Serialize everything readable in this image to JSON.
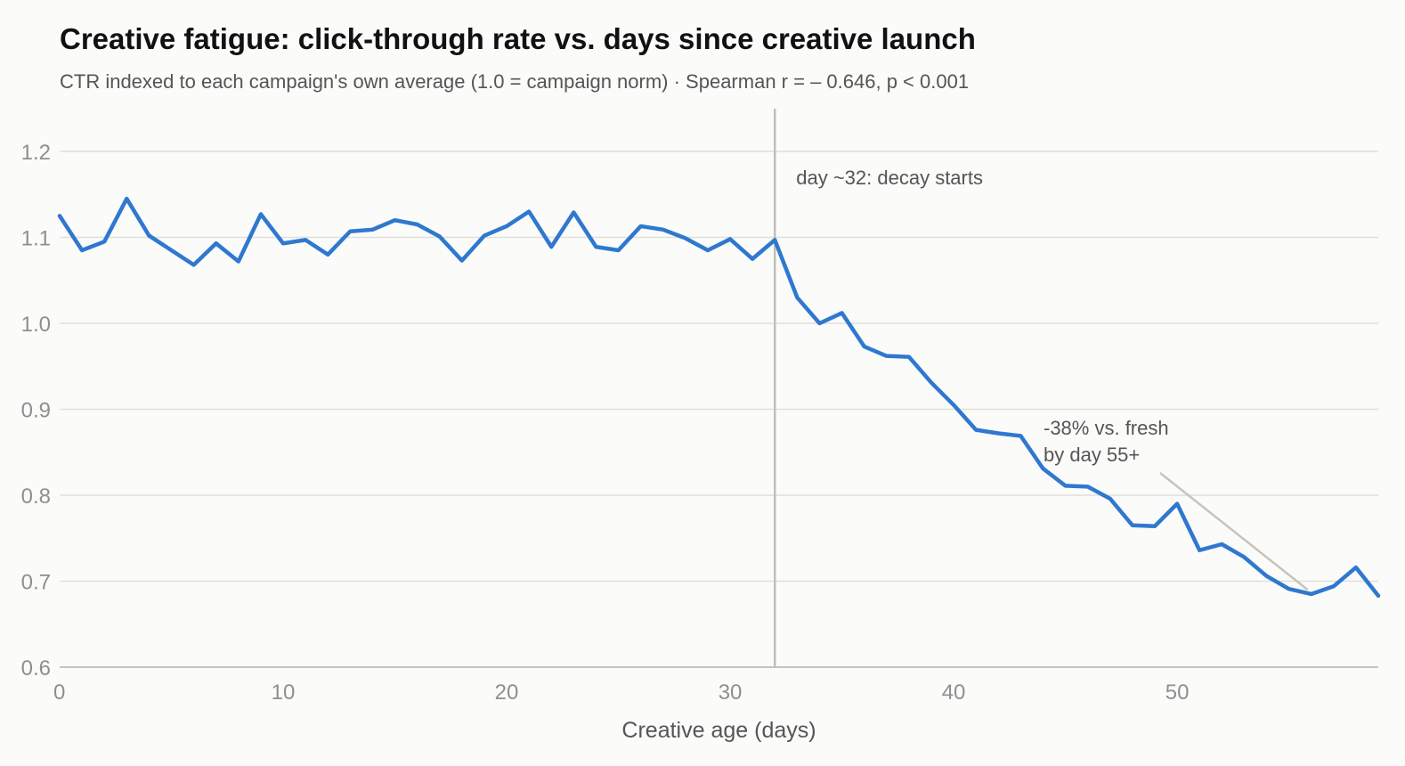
{
  "chart_data": {
    "type": "line",
    "title": "Creative fatigue: click-through rate vs. days since creative launch",
    "subtitle": "CTR indexed to each campaign's own average (1.0 = campaign norm) · Spearman r = – 0.646, p < 0.001",
    "xlabel": "Creative age (days)",
    "ylabel": "",
    "xlim": [
      0,
      59
    ],
    "ylim": [
      0.6,
      1.25
    ],
    "x_ticks": [
      "0",
      "10",
      "20",
      "30",
      "40",
      "50"
    ],
    "y_ticks": [
      "0.6",
      "0.7",
      "0.8",
      "0.9",
      "1.0",
      "1.1",
      "1.2"
    ],
    "grid": "horizontal",
    "series": [
      {
        "name": "",
        "color": "#2f78cf",
        "x": [
          0,
          1,
          2,
          3,
          4,
          5,
          6,
          7,
          8,
          9,
          10,
          11,
          12,
          13,
          14,
          15,
          16,
          17,
          18,
          19,
          20,
          21,
          22,
          23,
          24,
          25,
          26,
          27,
          28,
          29,
          30,
          31,
          32,
          33,
          34,
          35,
          36,
          37,
          38,
          39,
          40,
          41,
          42,
          43,
          44,
          45,
          46,
          47,
          48,
          49,
          50,
          51,
          52,
          53,
          54,
          55,
          56,
          57,
          58,
          59
        ],
        "values": [
          1.125,
          1.085,
          1.095,
          1.145,
          1.102,
          1.085,
          1.068,
          1.093,
          1.072,
          1.127,
          1.093,
          1.097,
          1.08,
          1.107,
          1.109,
          1.12,
          1.115,
          1.101,
          1.073,
          1.102,
          1.113,
          1.13,
          1.089,
          1.129,
          1.089,
          1.085,
          1.113,
          1.109,
          1.099,
          1.085,
          1.098,
          1.075,
          1.097,
          1.03,
          1.0,
          1.012,
          0.973,
          0.962,
          0.961,
          0.931,
          0.905,
          0.876,
          0.872,
          0.869,
          0.831,
          0.811,
          0.81,
          0.796,
          0.765,
          0.764,
          0.79,
          0.736,
          0.743,
          0.728,
          0.706,
          0.691,
          0.685,
          0.694,
          0.716,
          0.683
        ]
      }
    ],
    "reference_line": {
      "x": 32,
      "label": "day ~32: decay starts",
      "color": "#c2c0b8"
    },
    "annotation": {
      "lines": [
        "-38% vs. fresh",
        "by day 55+"
      ],
      "point_x": 56,
      "point_y": 0.69
    }
  }
}
